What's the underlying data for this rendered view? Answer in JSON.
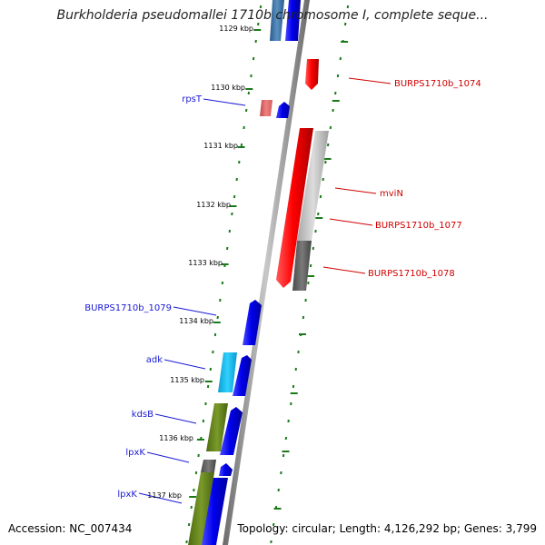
{
  "title": "Burkholderia pseudomallei 1710b chromosome I, complete seque...",
  "accession_text": "Accession: NC_007434",
  "summary_text": "Topology: circular; Length: 4,126,292 bp; Genes: 3,799",
  "ruler_labels": [
    "1129 kbp",
    "1130 kbp",
    "1131 kbp",
    "1132 kbp",
    "1133 kbp",
    "1134 kbp",
    "1135 kbp",
    "1136 kbp",
    "1137 kbp"
  ],
  "gene_labels_left": [
    "rpsT",
    "BURPS1710b_1079",
    "adk",
    "kdsB",
    "lpxK",
    "lpxK"
  ],
  "gene_labels_right": [
    "BURPS1710b_1074",
    "mviN",
    "BURPS1710b_1077",
    "BURPS1710b_1078"
  ],
  "colors": {
    "left_label": "#1a1ad6",
    "right_label": "#d00000",
    "ruler_tick": "#1a7a1a",
    "backbone": "#888888",
    "blue_gene": "#0a0af0",
    "red_gene": "#ff0000"
  }
}
